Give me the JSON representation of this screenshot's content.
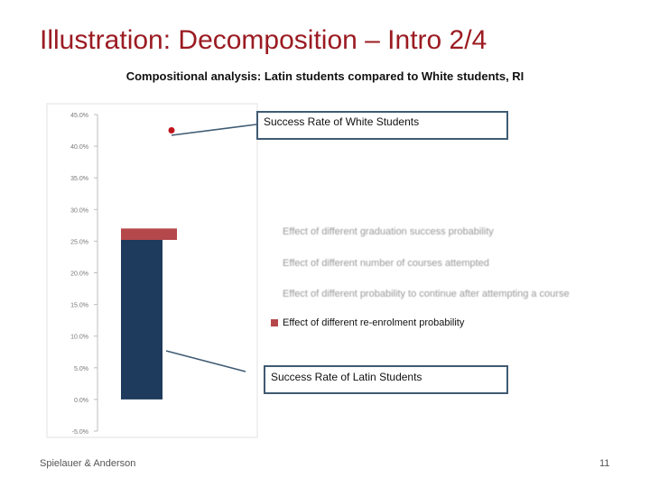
{
  "slide": {
    "title": "Illustration: Decomposition – Intro 2/4",
    "footer_left": "Spielauer & Anderson",
    "page_number": "11"
  },
  "chart_data": {
    "type": "bar",
    "title": "Compositional analysis: Latin students compared to White students, RI",
    "ylim": [
      -5,
      45
    ],
    "yticks": [
      "45.0%",
      "40.0%",
      "35.0%",
      "30.0%",
      "25.0%",
      "20.0%",
      "15.0%",
      "10.0%",
      "5.0%",
      "0.0%",
      "-5.0%"
    ],
    "ytick_values": [
      45,
      40,
      35,
      30,
      25,
      20,
      15,
      10,
      5,
      0,
      -5
    ],
    "grid": false,
    "bars": [
      {
        "name": "Success Rate of Latin Students",
        "base": 0,
        "value": 25.2,
        "color": "#1e3a5c"
      },
      {
        "name": "Effect of different re-enrolment probability",
        "base": 25.2,
        "value": 1.8,
        "color": "#b5484b"
      }
    ],
    "marker": {
      "name": "Success Rate of White Students",
      "value": 41.8,
      "color": "#c0141c"
    },
    "callouts": {
      "white": "Success Rate of White Students",
      "latin": "Success Rate of Latin Students"
    },
    "legend": [
      {
        "label": "Effect of different graduation success probability",
        "color": "#c0c0c0",
        "visible": false
      },
      {
        "label": "Effect of different number of courses attempted",
        "color": "#c0c0c0",
        "visible": false
      },
      {
        "label": "Effect of different probability to continue after attempting a course",
        "color": "#c0c0c0",
        "visible": false
      },
      {
        "label": "Effect of different re-enrolment probability",
        "color": "#b5484b",
        "visible": true
      }
    ]
  }
}
